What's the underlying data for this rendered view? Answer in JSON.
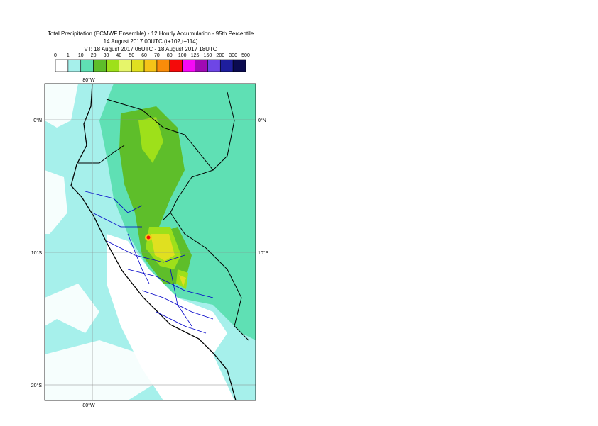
{
  "header": {
    "title": "Total Precipitation (ECMWF Ensemble) - 12 Hourly Accumulation - 95th Percentile",
    "run": "14 August 2017 00UTC (t+102,t+114)",
    "valid": "VT: 18 August 2017 06UTC - 18 August 2017 18UTC"
  },
  "legend": {
    "labels": [
      "0",
      "1",
      "10",
      "20",
      "30",
      "40",
      "50",
      "60",
      "70",
      "80",
      "100",
      "125",
      "150",
      "200",
      "300",
      "500"
    ],
    "colors": [
      "#ffffff",
      "#a6f0eb",
      "#5fe0b4",
      "#5ebe2a",
      "#9ee01a",
      "#e6f56a",
      "#e0e020",
      "#f5c418",
      "#fa8c0a",
      "#f50a0a",
      "#f50af5",
      "#a00ab4",
      "#6e46e6",
      "#1e1e9e",
      "#0a0a50"
    ]
  },
  "map": {
    "lon_label": "80°W",
    "lat_labels": [
      "0°N",
      "10°S",
      "20°S"
    ]
  }
}
